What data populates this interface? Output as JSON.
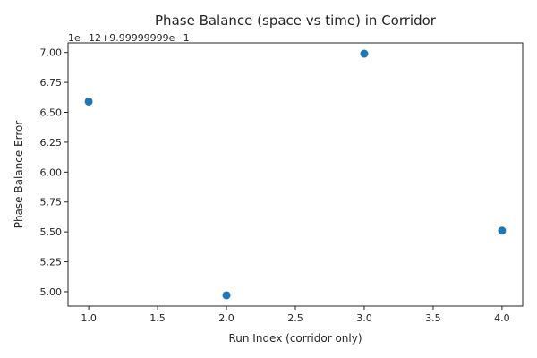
{
  "chart_data": {
    "type": "scatter",
    "title": "Phase Balance (space vs time) in Corridor",
    "xlabel": "Run Index (corridor only)",
    "ylabel": "Phase Balance Error",
    "y_offset_label": "1e−12+9.99999999e−1",
    "grid": false,
    "x": [
      1.0,
      2.0,
      3.0,
      4.0
    ],
    "y": [
      6.59,
      4.97,
      6.99,
      5.51
    ],
    "xlim": [
      0.85,
      4.15
    ],
    "ylim": [
      4.88,
      7.08
    ],
    "x_ticks": [
      1.0,
      1.5,
      2.0,
      2.5,
      3.0,
      3.5,
      4.0
    ],
    "x_tick_labels": [
      "1.0",
      "1.5",
      "2.0",
      "2.5",
      "3.0",
      "3.5",
      "4.0"
    ],
    "y_ticks": [
      5.0,
      5.25,
      5.5,
      5.75,
      6.0,
      6.25,
      6.5,
      6.75,
      7.0
    ],
    "y_tick_labels": [
      "5.00",
      "5.25",
      "5.50",
      "5.75",
      "6.00",
      "6.25",
      "6.50",
      "6.75",
      "7.00"
    ],
    "colors": {
      "point": "#1f77b4"
    }
  }
}
